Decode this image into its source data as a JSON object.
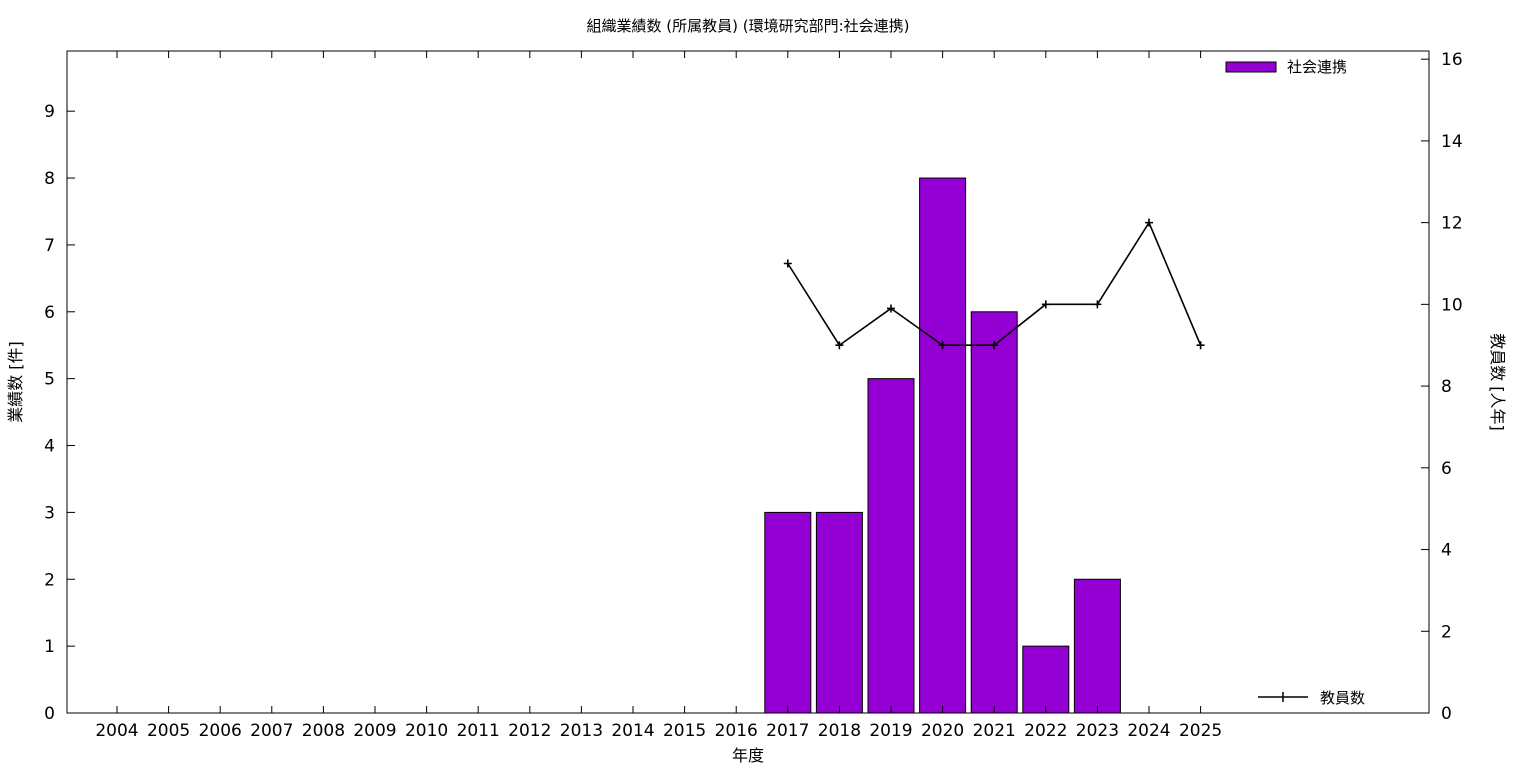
{
  "chart_data": {
    "type": "bar",
    "title": "組織業績数 (所属教員) (環境研究部門:社会連携)",
    "xlabel": "年度",
    "ylabel": "業績数 [件]",
    "y2label": "教員数 [人年]",
    "categories": [
      "2004",
      "2005",
      "2006",
      "2007",
      "2008",
      "2009",
      "2010",
      "2011",
      "2012",
      "2013",
      "2014",
      "2015",
      "2016",
      "2017",
      "2018",
      "2019",
      "2020",
      "2021",
      "2022",
      "2023",
      "2024",
      "2025"
    ],
    "ylim": [
      0,
      9.9
    ],
    "y2lim": [
      0,
      16.2
    ],
    "yticks": [
      "0",
      "1",
      "2",
      "3",
      "4",
      "5",
      "6",
      "7",
      "8",
      "9"
    ],
    "y2ticks": [
      "0",
      "2",
      "4",
      "6",
      "8",
      "10",
      "12",
      "14",
      "16"
    ],
    "series": [
      {
        "name": "社会連携",
        "type": "bar",
        "axis": "left",
        "color": "#9400d3",
        "values": [
          null,
          null,
          null,
          null,
          null,
          null,
          null,
          null,
          null,
          null,
          null,
          null,
          null,
          3,
          3,
          5,
          8,
          6,
          1,
          2,
          null,
          null
        ]
      },
      {
        "name": "教員数",
        "type": "line",
        "axis": "right",
        "color": "#000000",
        "values": [
          null,
          null,
          null,
          null,
          null,
          null,
          null,
          null,
          null,
          null,
          null,
          null,
          null,
          11,
          9,
          9.9,
          9,
          9,
          10,
          10,
          12,
          9
        ]
      }
    ],
    "legend": [
      "top-right",
      "bottom-right"
    ],
    "grid": false
  }
}
